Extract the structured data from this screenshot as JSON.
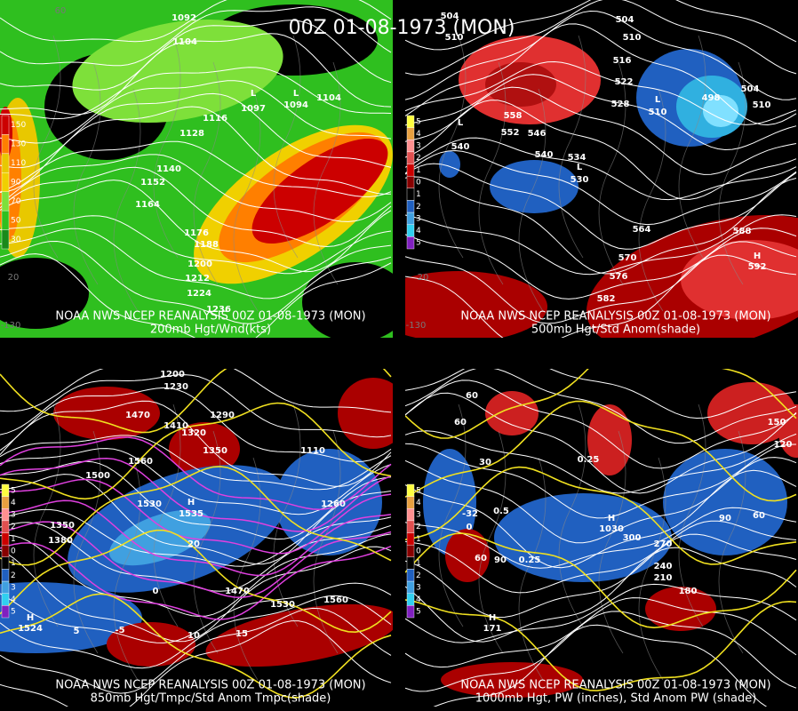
{
  "title": "00Z 01-08-1973 (MON)",
  "panels": [
    {
      "caption": "NOAA NWS NCEP REANALYSIS 00Z 01-08-1973 (MON)",
      "subtitle": "200mb Hgt/Wnd(kts)",
      "legend": [
        "150",
        "130",
        "110",
        "90",
        "70",
        "50",
        "30"
      ],
      "grid_labels": [
        "60",
        "20",
        "-130"
      ],
      "labels": [
        "1092",
        "1104",
        "1116",
        "1128",
        "1140",
        "1152",
        "1164",
        "1176",
        "1188",
        "1200",
        "1212",
        "1224",
        "1236",
        "L",
        "1097",
        "L",
        "1094",
        "1104"
      ]
    },
    {
      "caption": "NOAA NWS NCEP REANALYSIS 00Z 01-08-1973 (MON)",
      "subtitle": "500mb Hgt/Std Anom(shade)",
      "legend": [
        "5",
        "4",
        "3",
        "2",
        "1",
        "0",
        "1",
        "2",
        "3",
        "4",
        "5"
      ],
      "grid_labels": [
        "20",
        "-130"
      ],
      "labels": [
        "504",
        "510",
        "516",
        "522",
        "528",
        "534",
        "540",
        "546",
        "552",
        "558",
        "564",
        "570",
        "576",
        "582",
        "588",
        "504",
        "510",
        "L",
        "540",
        "L",
        "530",
        "L",
        "510",
        "H",
        "592",
        "498",
        "504",
        "510"
      ]
    },
    {
      "caption": "NOAA NWS NCEP REANALYSIS 00Z 01-08-1973 (MON)",
      "subtitle": "850mb Hgt/Tmpc/Std Anom Tmpc(shade)",
      "legend": [
        "5",
        "4",
        "3",
        "2",
        "1",
        "0",
        "1",
        "2",
        "3",
        "4",
        "5"
      ],
      "grid_labels": [],
      "labels": [
        "1200",
        "1230",
        "1290",
        "1470",
        "1410",
        "1320",
        "1350",
        "1560",
        "1500",
        "1530",
        "H",
        "1535",
        "1380",
        "1350",
        "1260",
        "1110",
        "1470",
        "1530",
        "1560",
        "H",
        "1524",
        "-5",
        "0",
        "5",
        "10",
        "15",
        "20"
      ]
    },
    {
      "caption": "NOAA NWS NCEP REANALYSIS 00Z 01-08-1973 (MON)",
      "subtitle": "1000mb Hgt, PW (inches), Std Anom PW (shade)",
      "legend": [
        "5",
        "4",
        "3",
        "2",
        "1",
        "0",
        "1",
        "2",
        "3",
        "4",
        "5"
      ],
      "grid_labels": [],
      "labels": [
        "60",
        "30",
        "60",
        "0",
        "0.25",
        "0.5",
        "0.25",
        "300",
        "270",
        "240",
        "210",
        "180",
        "90",
        "60",
        "120",
        "150",
        "H",
        "1030",
        "H",
        "171",
        "60",
        "90",
        "-32"
      ]
    }
  ]
}
